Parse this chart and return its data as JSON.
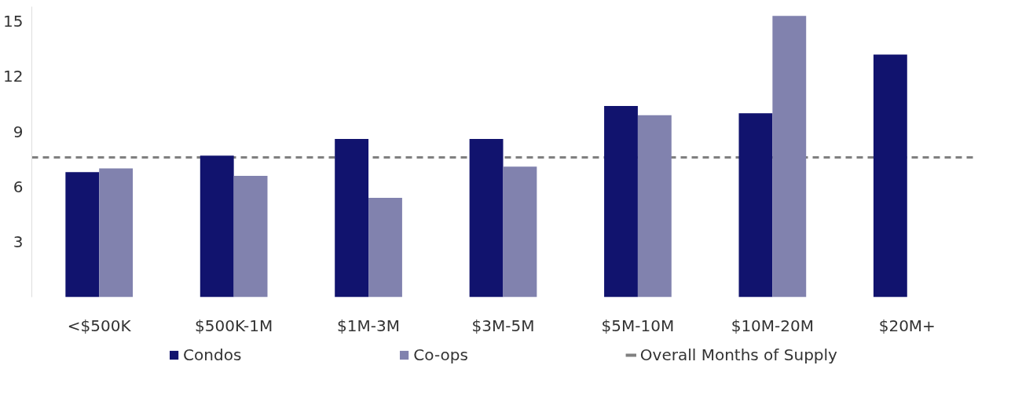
{
  "chart_data": {
    "type": "bar",
    "categories": [
      "<$500K",
      "$500K-1M",
      "$1M-3M",
      "$3M-5M",
      "$5M-10M",
      "$10M-20M",
      "$20M+"
    ],
    "series": [
      {
        "name": "Condos",
        "color": "#11136e",
        "values": [
          6.8,
          7.7,
          8.6,
          8.6,
          10.4,
          10.0,
          13.2
        ]
      },
      {
        "name": "Co-ops",
        "color": "#8182ae",
        "values": [
          7.0,
          6.6,
          5.4,
          7.1,
          9.9,
          15.3,
          null
        ]
      }
    ],
    "ylim": [
      0,
      15.8
    ],
    "yticks": [
      3,
      6,
      9,
      12,
      15
    ],
    "ref_lines": [
      {
        "axis": "y",
        "value": 7.6,
        "label": "Overall Months of Supply",
        "color": "#808080",
        "line_style": "dashed"
      }
    ],
    "grid": false,
    "legend": "bottom"
  }
}
